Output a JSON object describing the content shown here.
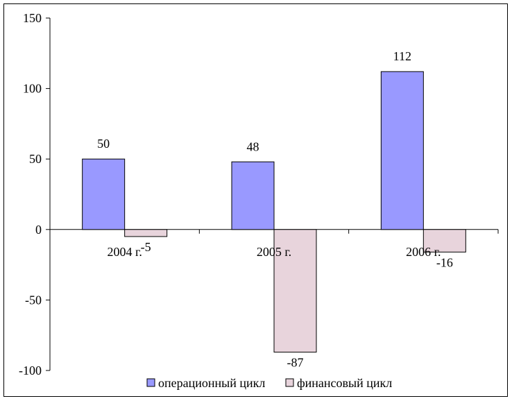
{
  "chart_data": {
    "type": "bar",
    "categories": [
      "2004 г.",
      "2005 г.",
      "2006 г."
    ],
    "series": [
      {
        "name": "операционный цикл",
        "values": [
          50,
          48,
          112
        ],
        "color": "#9999ff",
        "labels": [
          "50",
          "48",
          "112"
        ]
      },
      {
        "name": "финансовый цикл",
        "values": [
          -5,
          -87,
          -16
        ],
        "color": "#e8d4dc",
        "labels": [
          "-5",
          "-87",
          "-16"
        ]
      }
    ],
    "yticks": [
      150,
      100,
      50,
      0,
      -50,
      -100
    ],
    "ytick_labels": [
      "150",
      "100",
      "50",
      "0",
      "-50",
      "-100"
    ],
    "ylim": [
      -100,
      150
    ],
    "legend_position": "bottom",
    "grid": false
  }
}
